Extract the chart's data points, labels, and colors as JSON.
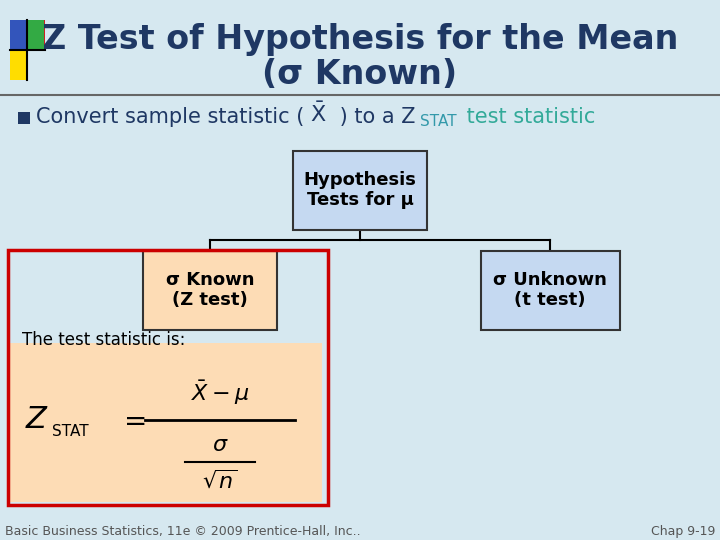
{
  "title_line1": "Z Test of Hypothesis for the Mean",
  "title_line2": "(σ Known)",
  "title_color": "#1F3864",
  "title_fontsize": 24,
  "bg_color": "#D6E8F0",
  "bullet_color": "#1F3864",
  "bullet_fontsize": 15,
  "box_center_label": "Hypothesis\nTests for μ",
  "box_left_label": "σ Known\n(Z test)",
  "box_right_label": "σ Unknown\n(t test)",
  "box_center_color": "#C5D9F1",
  "box_left_color": "#FDDCB5",
  "box_right_color": "#C5D9F1",
  "box_border_color": "#333333",
  "red_rect_color": "#CC0000",
  "formula_bg": "#FDDCB5",
  "footer_left": "Basic Business Statistics, 11e © 2009 Prentice-Hall, Inc..",
  "footer_right": "Chap 9-19",
  "footer_color": "#555555",
  "footer_fontsize": 9,
  "bullet_square_color": "#1F3864"
}
